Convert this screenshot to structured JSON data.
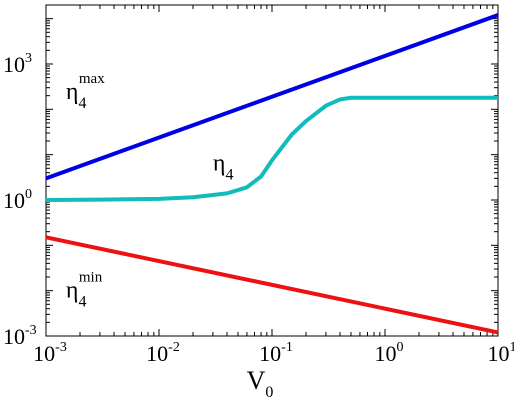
{
  "chart_data": {
    "type": "line",
    "title": "",
    "xlabel": {
      "base": "V",
      "sub": "0"
    },
    "ylabel": "",
    "xscale": "log",
    "yscale": "log",
    "xlim": [
      0.001,
      10
    ],
    "ylim": [
      0.001,
      20000
    ],
    "grid": false,
    "legend": "none",
    "x_ticks": [
      {
        "base": "10",
        "exp": "-3",
        "value": 0.001
      },
      {
        "base": "10",
        "exp": "-2",
        "value": 0.01
      },
      {
        "base": "10",
        "exp": "-1",
        "value": 0.1
      },
      {
        "base": "10",
        "exp": "0",
        "value": 1
      },
      {
        "base": "10",
        "exp": "1",
        "value": 10
      }
    ],
    "y_ticks": [
      {
        "base": "10",
        "exp": "-3",
        "value": 0.001
      },
      {
        "base": "10",
        "exp": "0",
        "value": 1
      },
      {
        "base": "10",
        "exp": "3",
        "value": 1000
      }
    ],
    "series": [
      {
        "color": "#0000e6",
        "x": [
          0.001,
          10
        ],
        "y": [
          3.0,
          12000
        ]
      },
      {
        "color": "#11bcbc",
        "x": [
          0.001,
          0.003,
          0.01,
          0.02,
          0.04,
          0.06,
          0.08,
          0.1,
          0.15,
          0.2,
          0.3,
          0.4,
          0.5,
          1,
          10
        ],
        "y": [
          1.0,
          1.02,
          1.06,
          1.15,
          1.4,
          1.9,
          3.3,
          7.5,
          28,
          55,
          120,
          165,
          180,
          180,
          180
        ]
      },
      {
        "color": "#ee1111",
        "x": [
          0.001,
          10
        ],
        "y": [
          0.15,
          0.0012
        ]
      }
    ],
    "annotations": [
      {
        "base": "η",
        "sub": "4",
        "sup": "max",
        "x": 0.0015,
        "y": 170
      },
      {
        "base": "η",
        "sub": "4",
        "sup": "",
        "x": 0.03,
        "y": 4.5
      },
      {
        "base": "η",
        "sub": "4",
        "sup": "min",
        "x": 0.0015,
        "y": 0.007
      }
    ]
  }
}
